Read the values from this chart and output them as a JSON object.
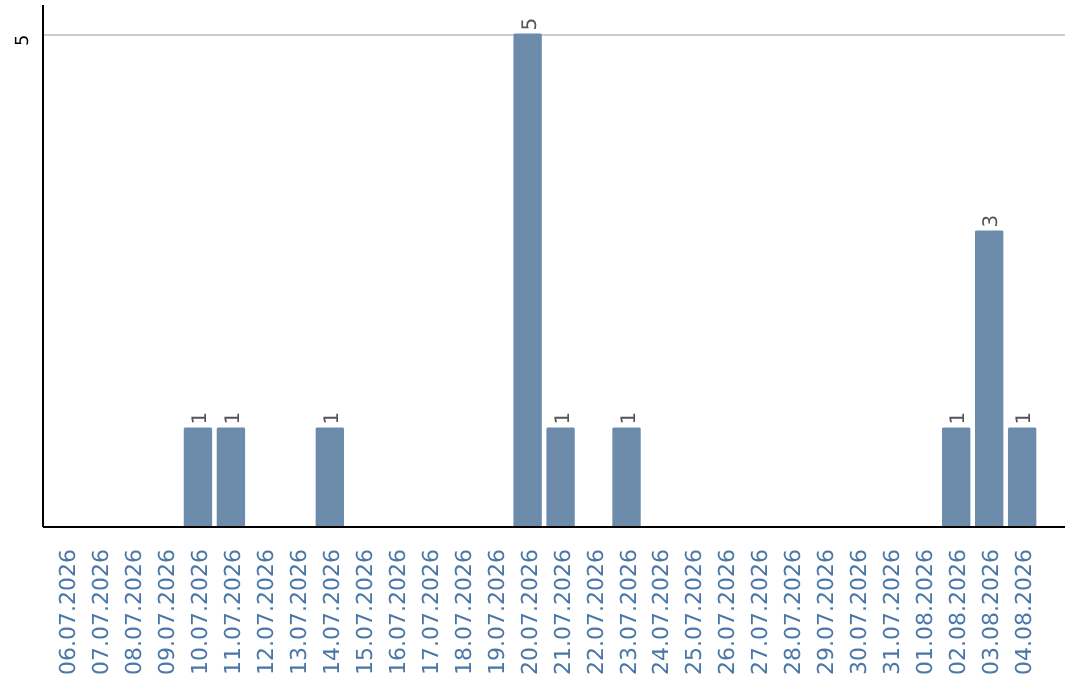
{
  "chart_data": {
    "type": "bar",
    "categories": [
      "06.07.2026",
      "07.07.2026",
      "08.07.2026",
      "09.07.2026",
      "10.07.2026",
      "11.07.2026",
      "12.07.2026",
      "13.07.2026",
      "14.07.2026",
      "15.07.2026",
      "16.07.2026",
      "17.07.2026",
      "18.07.2026",
      "19.07.2026",
      "20.07.2026",
      "21.07.2026",
      "22.07.2026",
      "23.07.2026",
      "24.07.2026",
      "25.07.2026",
      "26.07.2026",
      "27.07.2026",
      "28.07.2026",
      "29.07.2026",
      "30.07.2026",
      "31.07.2026",
      "01.08.2026",
      "02.08.2026",
      "03.08.2026",
      "04.08.2026"
    ],
    "values": [
      0,
      0,
      0,
      0,
      1,
      1,
      0,
      0,
      1,
      0,
      0,
      0,
      0,
      0,
      5,
      1,
      0,
      1,
      0,
      0,
      0,
      0,
      0,
      0,
      0,
      0,
      0,
      1,
      3,
      1
    ],
    "value_labels": [
      null,
      null,
      null,
      null,
      "1",
      "1",
      null,
      null,
      "1",
      null,
      null,
      null,
      null,
      null,
      "5",
      "1",
      null,
      "1",
      null,
      null,
      null,
      null,
      null,
      null,
      null,
      null,
      null,
      "1",
      "3",
      "1"
    ],
    "color": "#6d8cab",
    "ylim": [
      0,
      5.3
    ],
    "yticks": [
      5
    ],
    "grid": "y"
  }
}
